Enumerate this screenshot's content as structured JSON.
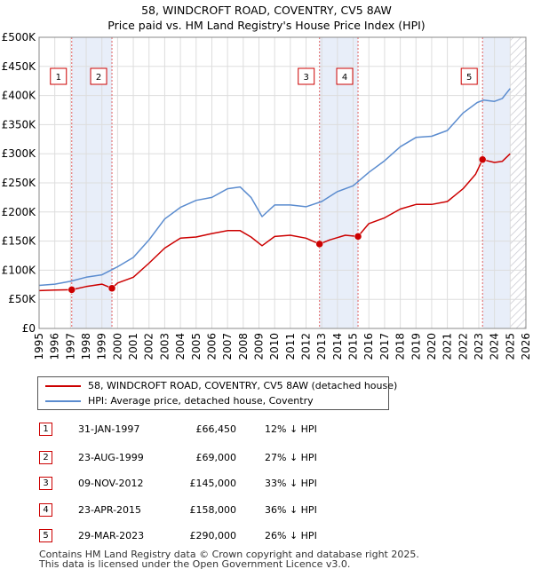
{
  "chart_data": {
    "type": "line",
    "title": "58, WINDCROFT ROAD, COVENTRY, CV5 8AW",
    "subtitle": "Price paid vs. HM Land Registry's House Price Index (HPI)",
    "xlabel": "",
    "ylabel": "",
    "xlim": [
      1995,
      2026
    ],
    "ylim": [
      0,
      500000
    ],
    "y_ticks": [
      {
        "value": 0,
        "label": "£0"
      },
      {
        "value": 50000,
        "label": "£50K"
      },
      {
        "value": 100000,
        "label": "£100K"
      },
      {
        "value": 150000,
        "label": "£150K"
      },
      {
        "value": 200000,
        "label": "£200K"
      },
      {
        "value": 250000,
        "label": "£250K"
      },
      {
        "value": 300000,
        "label": "£300K"
      },
      {
        "value": 350000,
        "label": "£350K"
      },
      {
        "value": 400000,
        "label": "£400K"
      },
      {
        "value": 450000,
        "label": "£450K"
      },
      {
        "value": 500000,
        "label": "£500K"
      }
    ],
    "x_ticks": [
      "1995",
      "1996",
      "1997",
      "1998",
      "1999",
      "2000",
      "2001",
      "2002",
      "2003",
      "2004",
      "2005",
      "2006",
      "2007",
      "2008",
      "2009",
      "2010",
      "2011",
      "2012",
      "2013",
      "2014",
      "2015",
      "2016",
      "2017",
      "2018",
      "2019",
      "2020",
      "2021",
      "2022",
      "2023",
      "2024",
      "2025",
      "2026"
    ],
    "grid": true,
    "shaded_periods": [
      {
        "from": 1997.08,
        "to": 1999.64
      },
      {
        "from": 2012.86,
        "to": 2015.31
      },
      {
        "from": 2023.24,
        "to": 2025.0
      }
    ],
    "hatched_future_from": 2025.0,
    "series": [
      {
        "name": "58, WINDCROFT ROAD, COVENTRY, CV5 8AW (detached house)",
        "color": "#cc0000",
        "x": [
          1995.0,
          1996.0,
          1997.08,
          1998.0,
          1999.0,
          1999.64,
          2000.0,
          2001.0,
          2002.0,
          2003.0,
          2004.0,
          2005.0,
          2006.0,
          2007.0,
          2007.8,
          2008.5,
          2009.2,
          2010.0,
          2011.0,
          2012.0,
          2012.86,
          2013.5,
          2014.5,
          2015.31,
          2016.0,
          2017.0,
          2018.0,
          2019.0,
          2020.0,
          2021.0,
          2022.0,
          2022.8,
          2023.24,
          2024.0,
          2024.5,
          2025.0
        ],
        "values": [
          65000,
          66000,
          66450,
          72000,
          76000,
          69000,
          78000,
          88000,
          112000,
          138000,
          155000,
          157000,
          163000,
          168000,
          168000,
          157000,
          142000,
          158000,
          160000,
          155000,
          145000,
          152000,
          160000,
          158000,
          180000,
          190000,
          205000,
          213000,
          213000,
          218000,
          240000,
          265000,
          290000,
          285000,
          287000,
          300000
        ]
      },
      {
        "name": "HPI: Average price, detached house, Coventry",
        "color": "#5b8ccf",
        "x": [
          1995.0,
          1996.0,
          1997.0,
          1998.0,
          1999.0,
          2000.0,
          2001.0,
          2002.0,
          2003.0,
          2004.0,
          2005.0,
          2006.0,
          2007.0,
          2007.8,
          2008.5,
          2009.2,
          2010.0,
          2011.0,
          2012.0,
          2013.0,
          2014.0,
          2015.0,
          2016.0,
          2017.0,
          2018.0,
          2019.0,
          2020.0,
          2021.0,
          2022.0,
          2022.9,
          2023.3,
          2024.0,
          2024.5,
          2025.0
        ],
        "values": [
          74000,
          76000,
          81000,
          88000,
          92000,
          106000,
          122000,
          152000,
          188000,
          208000,
          220000,
          225000,
          240000,
          243000,
          225000,
          192000,
          212000,
          212000,
          209000,
          218000,
          235000,
          245000,
          268000,
          288000,
          312000,
          328000,
          330000,
          340000,
          370000,
          388000,
          392000,
          390000,
          395000,
          412000
        ]
      }
    ],
    "annotations": [
      {
        "label": "1",
        "x": 1997.08
      },
      {
        "label": "2",
        "x": 1999.64
      },
      {
        "label": "3",
        "x": 2012.86
      },
      {
        "label": "4",
        "x": 2015.31
      },
      {
        "label": "5",
        "x": 2023.24
      }
    ],
    "sale_points": [
      {
        "x": 1997.08,
        "value": 66450
      },
      {
        "x": 1999.64,
        "value": 69000
      },
      {
        "x": 2012.86,
        "value": 145000
      },
      {
        "x": 2015.31,
        "value": 158000
      },
      {
        "x": 2023.24,
        "value": 290000
      }
    ]
  },
  "legend": {
    "property_label": "58, WINDCROFT ROAD, COVENTRY, CV5 8AW (detached house)",
    "hpi_label": "HPI: Average price, detached house, Coventry",
    "property_color": "#cc0000",
    "hpi_color": "#5b8ccf"
  },
  "transactions": [
    {
      "num": "1",
      "date": "31-JAN-1997",
      "price": "£66,450",
      "hpi": "12% ↓ HPI"
    },
    {
      "num": "2",
      "date": "23-AUG-1999",
      "price": "£69,000",
      "hpi": "27% ↓ HPI"
    },
    {
      "num": "3",
      "date": "09-NOV-2012",
      "price": "£145,000",
      "hpi": "33% ↓ HPI"
    },
    {
      "num": "4",
      "date": "23-APR-2015",
      "price": "£158,000",
      "hpi": "36% ↓ HPI"
    },
    {
      "num": "5",
      "date": "29-MAR-2023",
      "price": "£290,000",
      "hpi": "26% ↓ HPI"
    }
  ],
  "footer": {
    "line1": "Contains HM Land Registry data © Crown copyright and database right 2025.",
    "line2": "This data is licensed under the Open Government Licence v3.0."
  }
}
